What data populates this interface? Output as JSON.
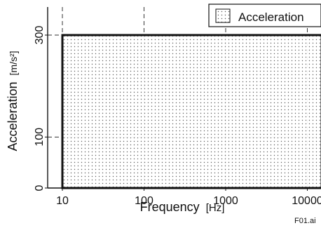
{
  "chart_data": {
    "type": "area",
    "title": "",
    "xlabel_main": "Frequency",
    "xlabel_unit": "[Hz]",
    "ylabel_main": "Acceleration",
    "ylabel_unit": "[m/s²]",
    "x_scale": "log",
    "x_ticks": [
      10,
      100,
      1000,
      10000
    ],
    "x_tick_labels": [
      "10",
      "100",
      "1000",
      "10000"
    ],
    "y_ticks": [
      0,
      100,
      300
    ],
    "y_tick_labels": [
      "0",
      "100",
      "300"
    ],
    "xlim": [
      10,
      15000
    ],
    "ylim": [
      0,
      300
    ],
    "region": {
      "x_min": 10,
      "x_max": 15000,
      "y_min": 0,
      "y_max": 300
    },
    "legend": {
      "label": "Acceleration",
      "position": "top-right"
    },
    "grid": true,
    "fig_id": "F01.ai"
  },
  "colors": {
    "axis": "#111111",
    "grid": "#333333",
    "dot": "#555555",
    "fill": "#ffffff"
  }
}
